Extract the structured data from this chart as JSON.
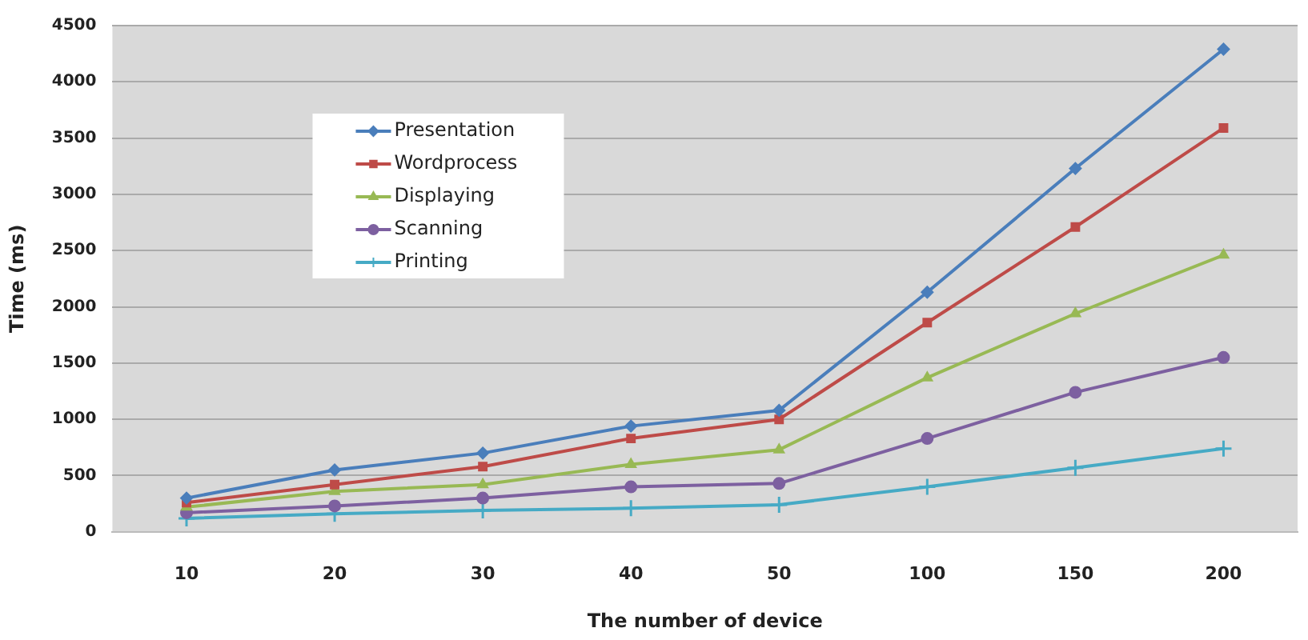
{
  "chart_data": {
    "type": "line",
    "xlabel": "The number of device",
    "ylabel": "Time (ms)",
    "categories": [
      "10",
      "20",
      "30",
      "40",
      "50",
      "100",
      "150",
      "200"
    ],
    "series": [
      {
        "name": "Presentation",
        "color": "#4a7ebb",
        "marker": "diamond",
        "values": [
          300,
          550,
          700,
          940,
          1080,
          2130,
          3230,
          4290
        ]
      },
      {
        "name": "Wordprocess",
        "color": "#be4b48",
        "marker": "square",
        "values": [
          260,
          420,
          580,
          830,
          1000,
          1860,
          2710,
          3590
        ]
      },
      {
        "name": "Displaying",
        "color": "#98b954",
        "marker": "triangle",
        "values": [
          220,
          360,
          420,
          600,
          730,
          1370,
          1940,
          2460
        ]
      },
      {
        "name": "Scanning",
        "color": "#7d60a0",
        "marker": "circle",
        "values": [
          170,
          230,
          300,
          400,
          430,
          830,
          1240,
          1550
        ]
      },
      {
        "name": "Printing",
        "color": "#46aac5",
        "marker": "cross",
        "values": [
          120,
          160,
          190,
          210,
          240,
          400,
          570,
          740
        ]
      }
    ],
    "ylim": [
      0,
      4500
    ],
    "yticks": [
      0,
      500,
      1000,
      1500,
      2000,
      2500,
      3000,
      3500,
      4000,
      4500
    ],
    "grid": "y",
    "legend": "top left"
  }
}
